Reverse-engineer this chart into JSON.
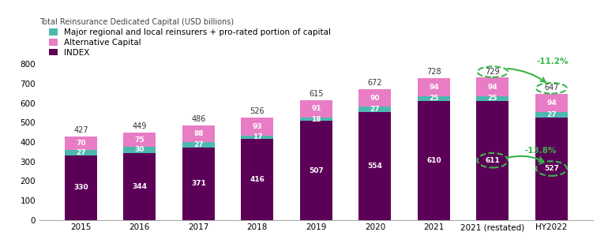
{
  "categories": [
    "2015",
    "2016",
    "2017",
    "2018",
    "2019",
    "2020",
    "2021",
    "2021 (restated)",
    "HY2022"
  ],
  "index_values": [
    330,
    344,
    371,
    416,
    507,
    554,
    610,
    611,
    527
  ],
  "regional_values": [
    27,
    30,
    27,
    17,
    18,
    27,
    25,
    25,
    27
  ],
  "altcap_values": [
    70,
    75,
    88,
    93,
    91,
    90,
    94,
    94,
    94
  ],
  "totals": [
    427,
    449,
    486,
    526,
    615,
    672,
    728,
    729,
    647
  ],
  "color_index": "#5c0057",
  "color_regional": "#4db8b0",
  "color_altcap": "#e87dc5",
  "bar_width": 0.55,
  "ylim": [
    0,
    850
  ],
  "yticks": [
    0,
    100,
    200,
    300,
    400,
    500,
    600,
    700,
    800
  ],
  "title": "Total Reinsurance Dedicated Capital (USD billions)",
  "legend_regional": "Major regional and local reinsurers + pro-rated portion of capital",
  "legend_altcap": "Alternative Capital",
  "legend_index": "INDEX",
  "annotation_pct1": "-11.2%",
  "annotation_pct2": "-13.8%",
  "circle_color": "#39b54a",
  "background_color": "#ffffff"
}
